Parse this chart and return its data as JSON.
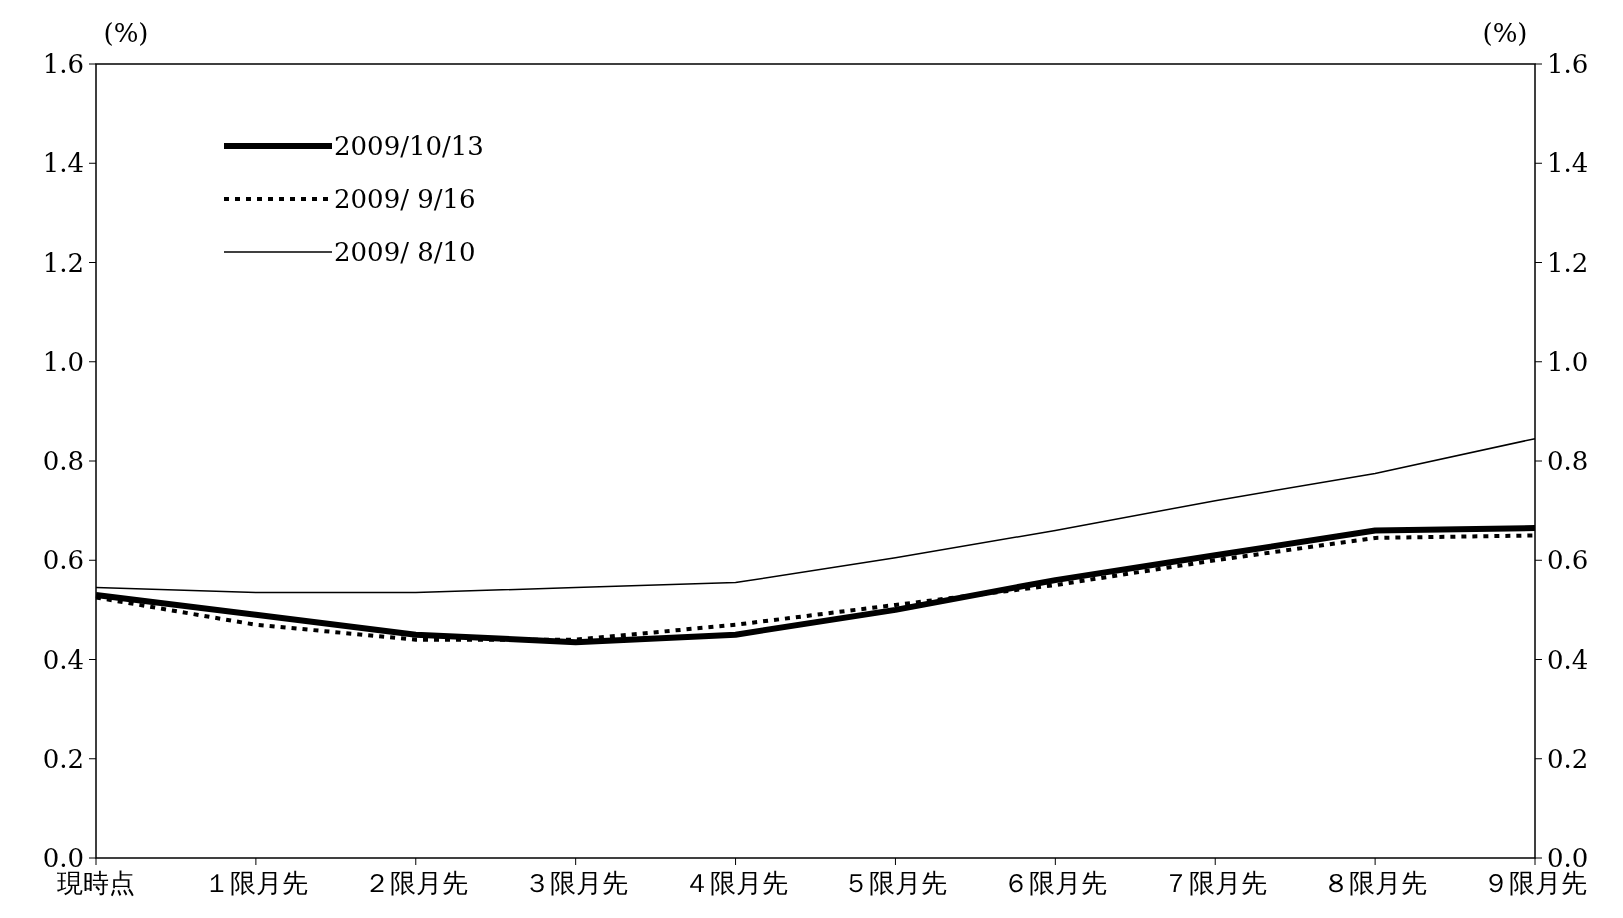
{
  "chart_data": {
    "type": "line",
    "ylabel": "(%)",
    "y2label": "(%)",
    "categories": [
      "現時点",
      "１限月先",
      "２限月先",
      "３限月先",
      "４限月先",
      "５限月先",
      "６限月先",
      "７限月先",
      "８限月先",
      "９限月先"
    ],
    "ylim": [
      0,
      1.6
    ],
    "yticks": [
      {
        "value": 0,
        "label": "0.0"
      },
      {
        "value": 0.2,
        "label": "0.2"
      },
      {
        "value": 0.4,
        "label": "0.4"
      },
      {
        "value": 0.6,
        "label": "0.6"
      },
      {
        "value": 0.8,
        "label": "0.8"
      },
      {
        "value": 1,
        "label": "1.0"
      },
      {
        "value": 1.2,
        "label": "1.2"
      },
      {
        "value": 1.4,
        "label": "1.4"
      },
      {
        "value": 1.6,
        "label": "1.6"
      }
    ],
    "y2lim": [
      0,
      1.6
    ],
    "y2ticks": [
      {
        "value": 0,
        "label": "0.0"
      },
      {
        "value": 0.2,
        "label": "0.2"
      },
      {
        "value": 0.4,
        "label": "0.4"
      },
      {
        "value": 0.6,
        "label": "0.6"
      },
      {
        "value": 0.8,
        "label": "0.8"
      },
      {
        "value": 1,
        "label": "1.0"
      },
      {
        "value": 1.2,
        "label": "1.2"
      },
      {
        "value": 1.4,
        "label": "1.4"
      },
      {
        "value": 1.6,
        "label": "1.6"
      }
    ],
    "legend": "top left",
    "grid": false,
    "marker": "none",
    "series": [
      {
        "name": "2009/10/13",
        "color": "#000000",
        "line_style": "solid",
        "values": [
          0.53,
          0.49,
          0.45,
          0.435,
          0.45,
          0.5,
          0.56,
          0.61,
          0.66,
          0.665
        ]
      },
      {
        "name": "2009/ 9/16",
        "color": "#000000",
        "line_style": "dotted",
        "values": [
          0.525,
          0.47,
          0.44,
          0.44,
          0.47,
          0.51,
          0.55,
          0.6,
          0.645,
          0.65
        ]
      },
      {
        "name": "2009/ 8/10",
        "color": "#000000",
        "line_style": "solid",
        "values": [
          0.545,
          0.535,
          0.535,
          0.545,
          0.555,
          0.605,
          0.66,
          0.72,
          0.775,
          0.845
        ]
      }
    ]
  }
}
